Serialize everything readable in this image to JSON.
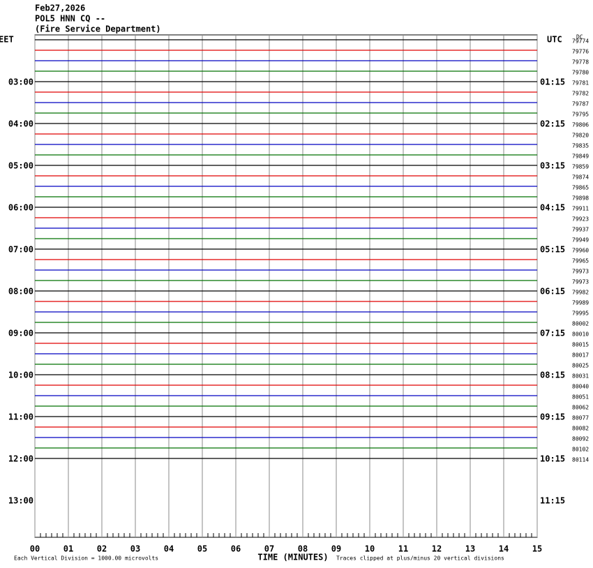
{
  "header": [
    "Feb27,2026",
    "POL5 HNN CQ --",
    "(Fire Service Department)"
  ],
  "left_axis": {
    "title": "EET",
    "labels": [
      "03:00",
      "04:00",
      "05:00",
      "06:00",
      "07:00",
      "08:00",
      "09:00",
      "10:00",
      "11:00",
      "12:00",
      "13:00"
    ]
  },
  "right_axis": {
    "title": "UTC",
    "labels": [
      "01:15",
      "02:15",
      "03:15",
      "04:15",
      "05:15",
      "06:15",
      "07:15",
      "08:15",
      "09:15",
      "10:15",
      "11:15"
    ]
  },
  "count_header": "DC",
  "traces": [
    79774,
    79776,
    79778,
    79780,
    79781,
    79782,
    79787,
    79795,
    79806,
    79820,
    79835,
    79849,
    79859,
    79874,
    79865,
    79898,
    79911,
    79923,
    79937,
    79949,
    79960,
    79965,
    79973,
    79973,
    79982,
    79989,
    79995,
    80002,
    80010,
    80015,
    80017,
    80025,
    80031,
    80040,
    80051,
    80062,
    80077,
    80082,
    80092,
    80102,
    80114
  ],
  "trace_colors": [
    "#000000",
    "#e00000",
    "#0000c0",
    "#007000"
  ],
  "x_axis": {
    "title": "TIME (MINUTES)",
    "labels": [
      "00",
      "01",
      "02",
      "03",
      "04",
      "05",
      "06",
      "07",
      "08",
      "09",
      "10",
      "11",
      "12",
      "13",
      "14",
      "15"
    ]
  },
  "footer_left": "Each Vertical Division = 1000.00 microvolts",
  "footer_right": "Traces clipped at plus/minus 20 vertical divisions"
}
